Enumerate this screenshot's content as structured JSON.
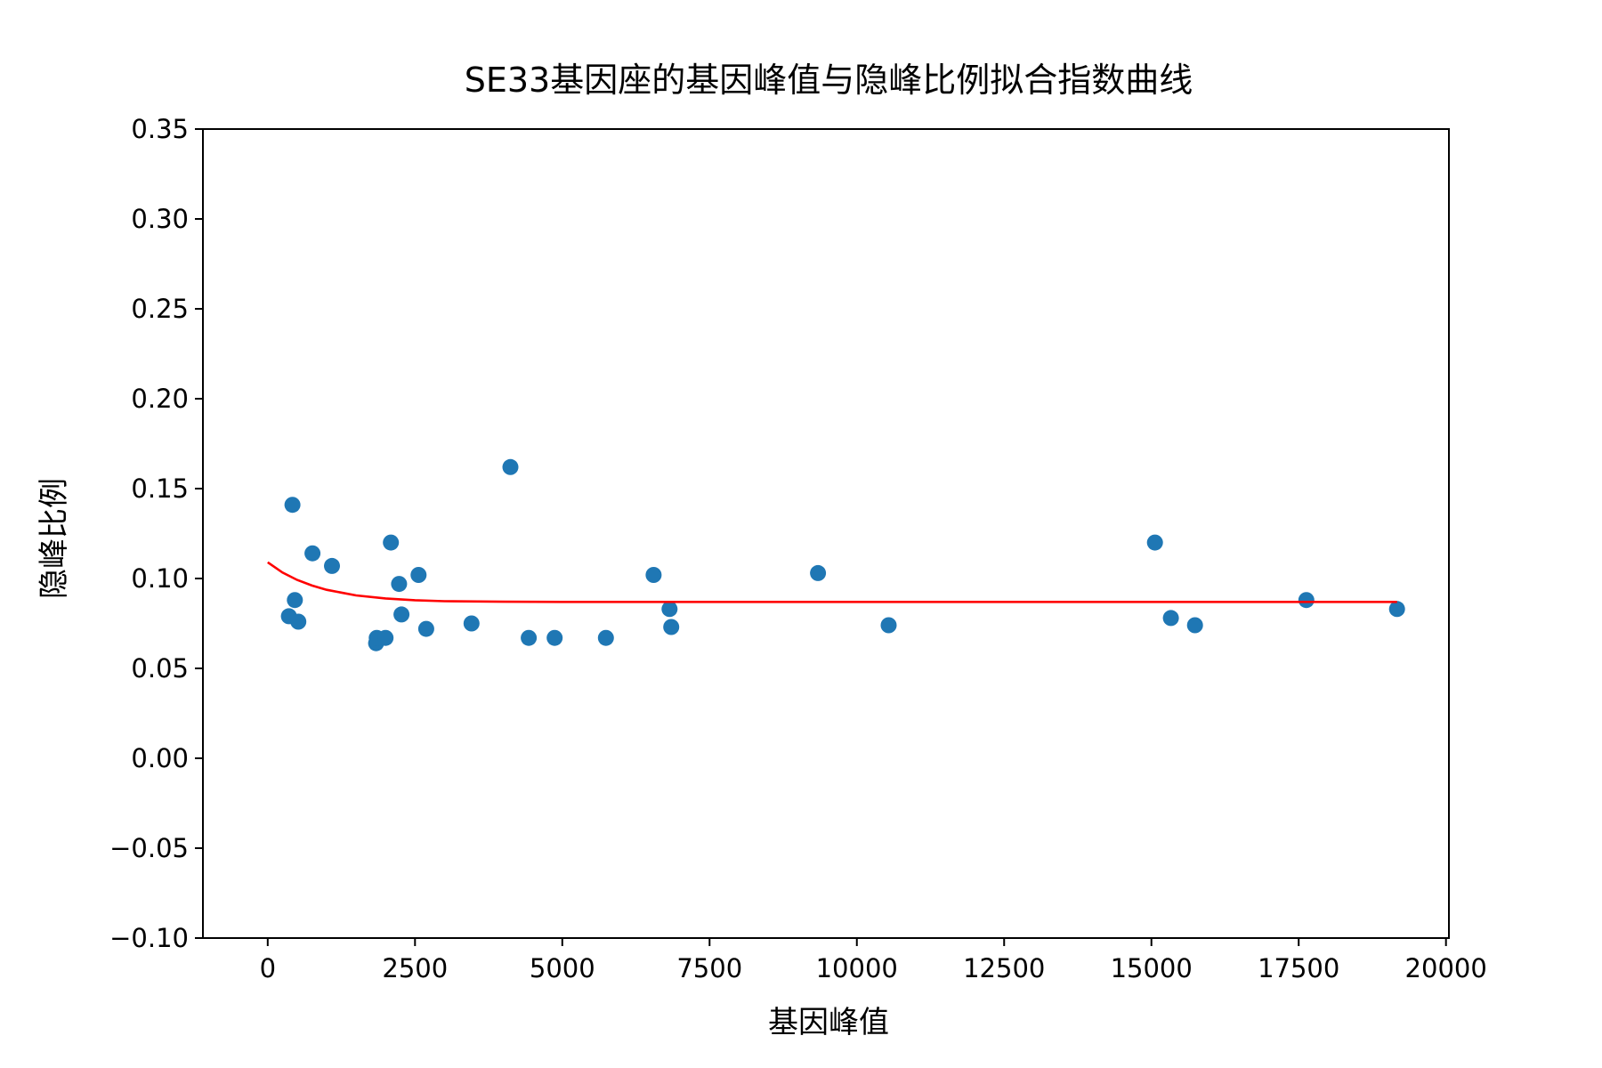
{
  "chart_data": {
    "type": "scatter",
    "title": "SE33基因座的基因峰值与隐峰比例拟合指数曲线",
    "xlabel": "基因峰值",
    "ylabel": "隐峰比例",
    "xlim": [
      -1100,
      20050
    ],
    "ylim": [
      -0.1,
      0.35
    ],
    "xticks": [
      0,
      2500,
      5000,
      7500,
      10000,
      12500,
      15000,
      17500,
      20000
    ],
    "xtick_labels": [
      "0",
      "2500",
      "5000",
      "7500",
      "10000",
      "12500",
      "15000",
      "17500",
      "20000"
    ],
    "yticks": [
      -0.1,
      -0.05,
      0.0,
      0.05,
      0.1,
      0.15,
      0.2,
      0.25,
      0.3,
      0.35
    ],
    "ytick_labels": [
      "−0.10",
      "−0.05",
      "0.00",
      "0.05",
      "0.10",
      "0.15",
      "0.20",
      "0.25",
      "0.30",
      "0.35"
    ],
    "grid": false,
    "series": [
      {
        "kind": "scatter",
        "color": "#1f77b4",
        "points": [
          {
            "x": 420,
            "y": 0.141
          },
          {
            "x": 360,
            "y": 0.079
          },
          {
            "x": 460,
            "y": 0.088
          },
          {
            "x": 520,
            "y": 0.076
          },
          {
            "x": 760,
            "y": 0.114
          },
          {
            "x": 1090,
            "y": 0.107
          },
          {
            "x": 1840,
            "y": 0.064
          },
          {
            "x": 1850,
            "y": 0.067
          },
          {
            "x": 2000,
            "y": 0.067
          },
          {
            "x": 2090,
            "y": 0.12
          },
          {
            "x": 2230,
            "y": 0.097
          },
          {
            "x": 2270,
            "y": 0.08
          },
          {
            "x": 2560,
            "y": 0.102
          },
          {
            "x": 2690,
            "y": 0.072
          },
          {
            "x": 3460,
            "y": 0.075
          },
          {
            "x": 4120,
            "y": 0.162
          },
          {
            "x": 4430,
            "y": 0.067
          },
          {
            "x": 4870,
            "y": 0.067
          },
          {
            "x": 5740,
            "y": 0.067
          },
          {
            "x": 6550,
            "y": 0.102
          },
          {
            "x": 6820,
            "y": 0.083
          },
          {
            "x": 6850,
            "y": 0.073
          },
          {
            "x": 9340,
            "y": 0.103
          },
          {
            "x": 10540,
            "y": 0.074
          },
          {
            "x": 15060,
            "y": 0.12
          },
          {
            "x": 15330,
            "y": 0.078
          },
          {
            "x": 15740,
            "y": 0.074
          },
          {
            "x": 17630,
            "y": 0.088
          },
          {
            "x": 19170,
            "y": 0.083
          }
        ]
      },
      {
        "kind": "line",
        "color": "#ff0000",
        "fit": "exponential",
        "points": [
          {
            "x": 0,
            "y": 0.109
          },
          {
            "x": 250,
            "y": 0.1033
          },
          {
            "x": 500,
            "y": 0.0992
          },
          {
            "x": 750,
            "y": 0.0961
          },
          {
            "x": 1000,
            "y": 0.0937
          },
          {
            "x": 1500,
            "y": 0.0906
          },
          {
            "x": 2000,
            "y": 0.0889
          },
          {
            "x": 2500,
            "y": 0.0879
          },
          {
            "x": 3000,
            "y": 0.0874
          },
          {
            "x": 4000,
            "y": 0.0871
          },
          {
            "x": 5000,
            "y": 0.087
          },
          {
            "x": 8000,
            "y": 0.087
          },
          {
            "x": 12000,
            "y": 0.087
          },
          {
            "x": 16000,
            "y": 0.087
          },
          {
            "x": 19170,
            "y": 0.087
          }
        ]
      }
    ]
  }
}
